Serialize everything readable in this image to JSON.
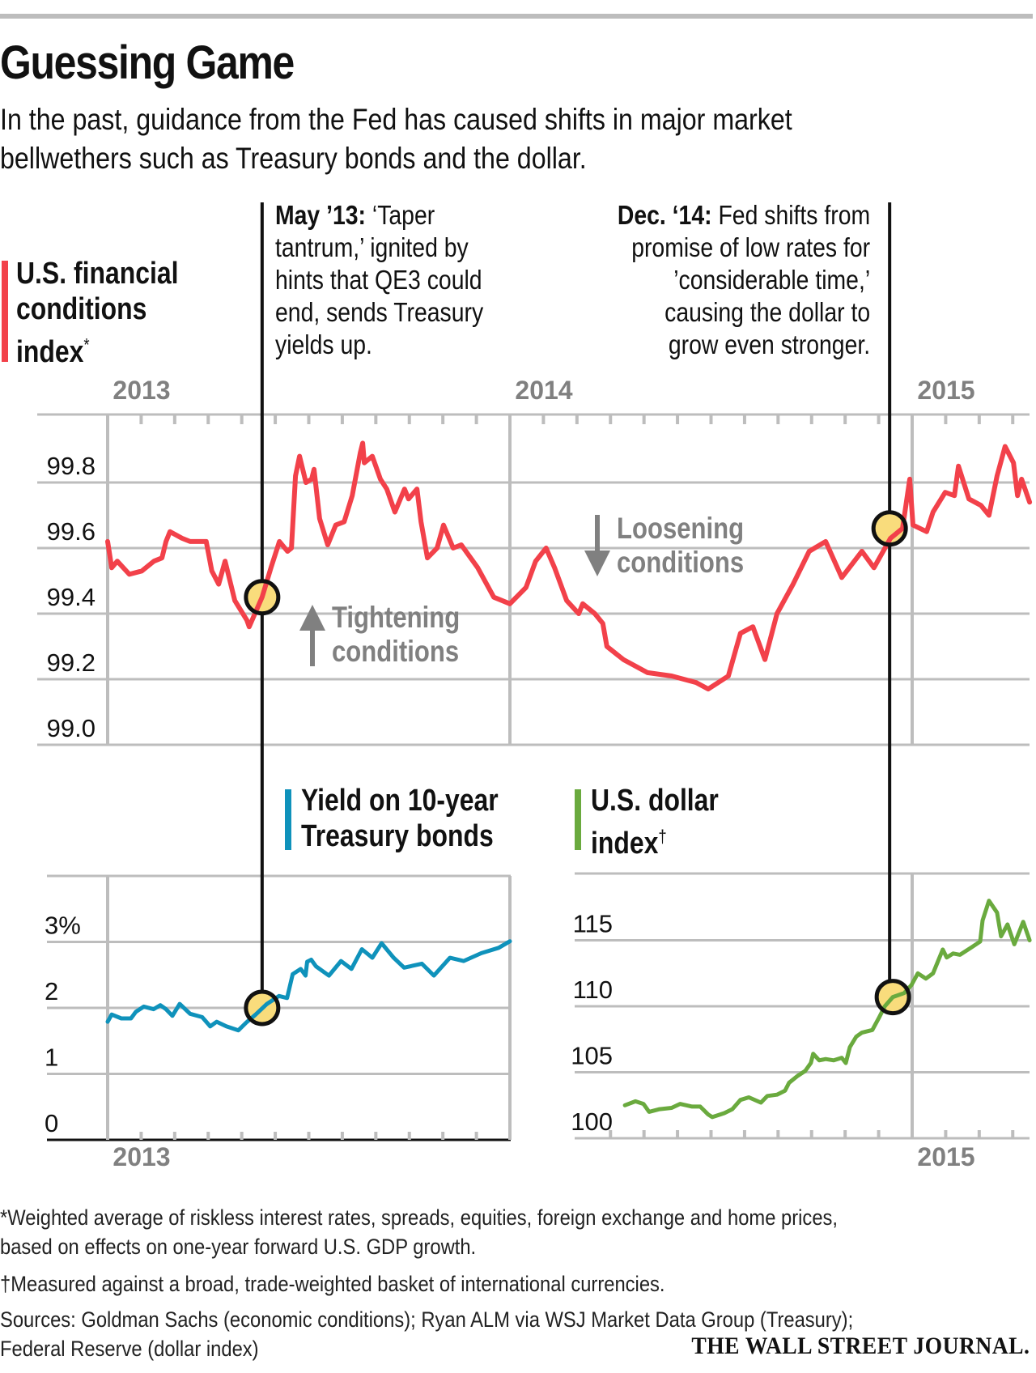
{
  "header": {
    "title": "Guessing Game",
    "subtitle_lines": [
      "In the past, guidance from the Fed has caused shifts in major market",
      "bellwethers such as Treasury bonds and the dollar."
    ]
  },
  "annotations": {
    "may13": {
      "bold": "May ’13:",
      "lines": [
        " ‘Taper",
        "tantrum,’ ignited by",
        "hints that QE3 could",
        "end, sends Treasury",
        "yields up."
      ]
    },
    "dec14": {
      "bold": "Dec. ‘14:",
      "lines": [
        " Fed shifts from",
        "promise of low rates for",
        "’considerable time,’",
        "causing the dollar to",
        "grow even stronger."
      ]
    },
    "tightening": {
      "lines": [
        "Tightening",
        "conditions"
      ],
      "icon": "arrow-up-icon"
    },
    "loosening": {
      "lines": [
        "Loosening",
        "conditions"
      ],
      "icon": "arrow-down-icon"
    }
  },
  "colors": {
    "fci": "#f2414a",
    "yield": "#0f92bb",
    "dollar": "#6aaa3e",
    "marker_fill": "#f9dc7c",
    "grid": "#bdbdbd",
    "year_label": "#808080"
  },
  "chart_data": [
    {
      "type": "line",
      "id": "fci",
      "title_lines": [
        "U.S. financial",
        "conditions",
        "index*"
      ],
      "title_marker": "*",
      "xlabel": "",
      "ylabel": "",
      "x_unit": "years since Jan 1 2013",
      "xlim": [
        0,
        2.29
      ],
      "ylim": [
        99.0,
        99.9
      ],
      "yticks": [
        99.0,
        99.2,
        99.4,
        99.6,
        99.8
      ],
      "ytick_labels": [
        "99.0",
        "99.2",
        "99.4",
        "99.6",
        "99.8"
      ],
      "year_labels": [
        {
          "x": 0,
          "label": "2013"
        },
        {
          "x": 1,
          "label": "2014"
        },
        {
          "x": 2,
          "label": "2015"
        }
      ],
      "grid": true,
      "markers": [
        {
          "x": 0.384,
          "y": 99.45,
          "label": "May '13"
        },
        {
          "x": 1.944,
          "y": 99.66,
          "label": "Dec. '14"
        }
      ],
      "points": [
        [
          0,
          99.62
        ],
        [
          0.01,
          99.54
        ],
        [
          0.024,
          99.56
        ],
        [
          0.054,
          99.52
        ],
        [
          0.085,
          99.53
        ],
        [
          0.115,
          99.56
        ],
        [
          0.135,
          99.57
        ],
        [
          0.145,
          99.62
        ],
        [
          0.155,
          99.65
        ],
        [
          0.185,
          99.63
        ],
        [
          0.205,
          99.62
        ],
        [
          0.245,
          99.62
        ],
        [
          0.259,
          99.53
        ],
        [
          0.276,
          99.49
        ],
        [
          0.292,
          99.56
        ],
        [
          0.316,
          99.44
        ],
        [
          0.346,
          99.38
        ],
        [
          0.352,
          99.36
        ],
        [
          0.384,
          99.45
        ],
        [
          0.406,
          99.54
        ],
        [
          0.427,
          99.62
        ],
        [
          0.447,
          99.59
        ],
        [
          0.457,
          99.6
        ],
        [
          0.467,
          99.82
        ],
        [
          0.477,
          99.88
        ],
        [
          0.493,
          99.8
        ],
        [
          0.507,
          99.81
        ],
        [
          0.513,
          99.84
        ],
        [
          0.527,
          99.69
        ],
        [
          0.547,
          99.61
        ],
        [
          0.567,
          99.67
        ],
        [
          0.588,
          99.68
        ],
        [
          0.608,
          99.76
        ],
        [
          0.628,
          99.89
        ],
        [
          0.634,
          99.92
        ],
        [
          0.638,
          99.86
        ],
        [
          0.658,
          99.88
        ],
        [
          0.678,
          99.81
        ],
        [
          0.694,
          99.78
        ],
        [
          0.714,
          99.71
        ],
        [
          0.738,
          99.78
        ],
        [
          0.748,
          99.75
        ],
        [
          0.769,
          99.78
        ],
        [
          0.779,
          99.68
        ],
        [
          0.795,
          99.57
        ],
        [
          0.819,
          99.6
        ],
        [
          0.835,
          99.67
        ],
        [
          0.859,
          99.6
        ],
        [
          0.879,
          99.61
        ],
        [
          0.92,
          99.54
        ],
        [
          0.96,
          99.45
        ],
        [
          1.0,
          99.43
        ],
        [
          1.04,
          99.48
        ],
        [
          1.064,
          99.56
        ],
        [
          1.09,
          99.6
        ],
        [
          1.111,
          99.54
        ],
        [
          1.141,
          99.44
        ],
        [
          1.171,
          99.4
        ],
        [
          1.181,
          99.43
        ],
        [
          1.231,
          99.37
        ],
        [
          1.211,
          99.4
        ],
        [
          1.241,
          99.3
        ],
        [
          1.282,
          99.26
        ],
        [
          1.342,
          99.22
        ],
        [
          1.402,
          99.21
        ],
        [
          1.463,
          99.19
        ],
        [
          1.493,
          99.17
        ],
        [
          1.543,
          99.21
        ],
        [
          1.573,
          99.34
        ],
        [
          1.604,
          99.36
        ],
        [
          1.634,
          99.26
        ],
        [
          1.664,
          99.4
        ],
        [
          1.704,
          99.49
        ],
        [
          1.744,
          99.59
        ],
        [
          1.785,
          99.62
        ],
        [
          1.825,
          99.51
        ],
        [
          1.875,
          99.59
        ],
        [
          1.905,
          99.54
        ],
        [
          1.946,
          99.63
        ],
        [
          1.976,
          99.66
        ],
        [
          1.994,
          99.81
        ],
        [
          2.002,
          99.67
        ],
        [
          2.036,
          99.65
        ],
        [
          2.052,
          99.71
        ],
        [
          2.082,
          99.77
        ],
        [
          2.105,
          99.76
        ],
        [
          2.115,
          99.85
        ],
        [
          2.141,
          99.75
        ],
        [
          2.171,
          99.73
        ],
        [
          2.191,
          99.7
        ],
        [
          2.211,
          99.82
        ],
        [
          2.231,
          99.91
        ],
        [
          2.252,
          99.86
        ],
        [
          2.262,
          99.76
        ],
        [
          2.272,
          99.81
        ],
        [
          2.292,
          99.74
        ]
      ]
    },
    {
      "type": "line",
      "id": "yield",
      "title_lines": [
        "Yield on 10-year",
        "Treasury bonds"
      ],
      "xlabel": "",
      "ylabel": "",
      "x_unit": "years since Jan 1 2013",
      "xlim": [
        0,
        1.0
      ],
      "ylim": [
        0,
        3.9
      ],
      "yticks": [
        0,
        1,
        2,
        3
      ],
      "ytick_labels": [
        "0",
        "1",
        "2",
        "3%"
      ],
      "year_labels": [
        {
          "x": 0,
          "label": "2013"
        }
      ],
      "grid": true,
      "markers": [
        {
          "x": 0.384,
          "y": 2.0,
          "label": "May '13"
        }
      ],
      "points": [
        [
          0,
          1.79
        ],
        [
          0.01,
          1.9
        ],
        [
          0.034,
          1.84
        ],
        [
          0.058,
          1.84
        ],
        [
          0.07,
          1.94
        ],
        [
          0.09,
          2.02
        ],
        [
          0.114,
          1.98
        ],
        [
          0.131,
          2.04
        ],
        [
          0.145,
          1.98
        ],
        [
          0.161,
          1.88
        ],
        [
          0.179,
          2.06
        ],
        [
          0.205,
          1.91
        ],
        [
          0.235,
          1.86
        ],
        [
          0.255,
          1.72
        ],
        [
          0.271,
          1.79
        ],
        [
          0.295,
          1.72
        ],
        [
          0.325,
          1.66
        ],
        [
          0.345,
          1.78
        ],
        [
          0.368,
          1.9
        ],
        [
          0.396,
          2.06
        ],
        [
          0.426,
          2.18
        ],
        [
          0.446,
          2.15
        ],
        [
          0.46,
          2.51
        ],
        [
          0.48,
          2.59
        ],
        [
          0.492,
          2.49
        ],
        [
          0.496,
          2.7
        ],
        [
          0.506,
          2.73
        ],
        [
          0.518,
          2.63
        ],
        [
          0.55,
          2.49
        ],
        [
          0.58,
          2.71
        ],
        [
          0.606,
          2.59
        ],
        [
          0.632,
          2.89
        ],
        [
          0.658,
          2.76
        ],
        [
          0.681,
          2.98
        ],
        [
          0.711,
          2.76
        ],
        [
          0.737,
          2.61
        ],
        [
          0.781,
          2.67
        ],
        [
          0.811,
          2.49
        ],
        [
          0.851,
          2.76
        ],
        [
          0.885,
          2.71
        ],
        [
          0.929,
          2.83
        ],
        [
          0.972,
          2.91
        ],
        [
          1.0,
          3.01
        ]
      ]
    },
    {
      "type": "line",
      "id": "dollar",
      "title_lines": [
        "U.S. dollar",
        "index†"
      ],
      "title_marker": "†",
      "xlabel": "",
      "ylabel": "",
      "x_unit": "years since Jan 1 2013",
      "xlim": [
        1.17,
        2.29
      ],
      "ylim": [
        100,
        119.5
      ],
      "yticks": [
        100,
        105,
        110,
        115
      ],
      "ytick_labels": [
        "100",
        "105",
        "110",
        "115"
      ],
      "year_labels": [
        {
          "x": 2,
          "label": "2015"
        }
      ],
      "grid": true,
      "markers": [
        {
          "x": 1.952,
          "y": 110.7,
          "label": "Dec. '14"
        }
      ],
      "points": [
        [
          1.286,
          102.5
        ],
        [
          1.312,
          102.8
        ],
        [
          1.332,
          102.6
        ],
        [
          1.346,
          102.0
        ],
        [
          1.372,
          102.2
        ],
        [
          1.402,
          102.3
        ],
        [
          1.423,
          102.6
        ],
        [
          1.453,
          102.4
        ],
        [
          1.473,
          102.4
        ],
        [
          1.493,
          101.8
        ],
        [
          1.503,
          101.6
        ],
        [
          1.533,
          101.9
        ],
        [
          1.553,
          102.2
        ],
        [
          1.573,
          102.9
        ],
        [
          1.594,
          103.1
        ],
        [
          1.624,
          102.7
        ],
        [
          1.64,
          103.2
        ],
        [
          1.664,
          103.3
        ],
        [
          1.684,
          103.6
        ],
        [
          1.694,
          104.2
        ],
        [
          1.714,
          104.7
        ],
        [
          1.734,
          105.1
        ],
        [
          1.748,
          105.7
        ],
        [
          1.754,
          106.4
        ],
        [
          1.769,
          105.9
        ],
        [
          1.785,
          106.0
        ],
        [
          1.805,
          105.9
        ],
        [
          1.825,
          106.1
        ],
        [
          1.835,
          105.7
        ],
        [
          1.845,
          106.9
        ],
        [
          1.861,
          107.7
        ],
        [
          1.875,
          108.0
        ],
        [
          1.901,
          108.2
        ],
        [
          1.917,
          109.1
        ],
        [
          1.932,
          110.0
        ],
        [
          1.952,
          110.7
        ],
        [
          1.98,
          111.0
        ],
        [
          1.998,
          111.6
        ],
        [
          2.014,
          112.5
        ],
        [
          2.034,
          112.1
        ],
        [
          2.052,
          112.5
        ],
        [
          2.06,
          113.1
        ],
        [
          2.076,
          114.3
        ],
        [
          2.086,
          113.7
        ],
        [
          2.102,
          114.0
        ],
        [
          2.119,
          113.9
        ],
        [
          2.149,
          114.5
        ],
        [
          2.169,
          114.9
        ],
        [
          2.175,
          116.5
        ],
        [
          2.191,
          118.0
        ],
        [
          2.211,
          117.1
        ],
        [
          2.221,
          115.3
        ],
        [
          2.237,
          116.2
        ],
        [
          2.254,
          114.7
        ],
        [
          2.276,
          116.4
        ],
        [
          2.292,
          115.0
        ]
      ]
    }
  ],
  "footnotes": {
    "asterisk_lines": [
      "*Weighted average of riskless interest rates, spreads, equities, foreign exchange and home prices,",
      "based on effects on one-year forward U.S. GDP growth."
    ],
    "dagger": "†Measured against a broad, trade-weighted basket of international currencies.",
    "sources_lines": [
      "Sources: Goldman Sachs (economic conditions); Ryan ALM via WSJ Market Data Group (Treasury);",
      "Federal Reserve (dollar index)"
    ]
  },
  "credit": "THE WALL STREET JOURNAL."
}
